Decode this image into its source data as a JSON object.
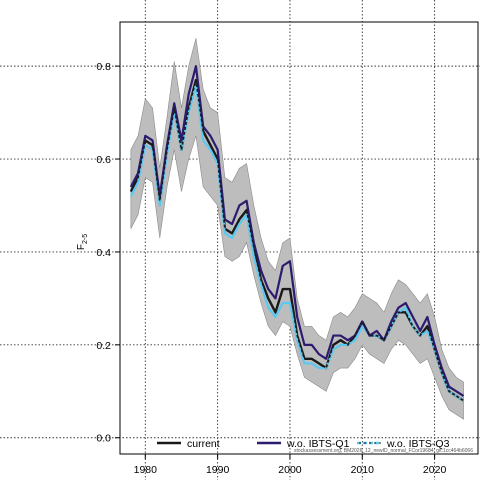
{
  "chart_data": {
    "type": "line",
    "title": "",
    "xlabel": "",
    "ylabel": "F",
    "ylabel_subscript": "2-5",
    "xlim": [
      1976.5,
      2026
    ],
    "ylim": [
      -0.035,
      0.895
    ],
    "x_ticks": [
      1980,
      1990,
      2000,
      2010,
      2020
    ],
    "y_ticks": [
      0.0,
      0.2,
      0.4,
      0.6,
      0.8
    ],
    "x_tick_labels": [
      "1980",
      "1990",
      "2000",
      "2010",
      "2020"
    ],
    "y_tick_labels": [
      "0.0",
      "0.2",
      "0.4",
      "0.6",
      "0.8"
    ],
    "grid": true,
    "legend_position": "bottom",
    "colors": {
      "band": "#bdbdbd",
      "current": "#1a1a1a",
      "wo_q1": "#2e1a6e",
      "wo_q3": "#5bc8ef",
      "grid": "#333333"
    },
    "x": [
      1978,
      1979,
      1980,
      1981,
      1982,
      1983,
      1984,
      1985,
      1986,
      1987,
      1988,
      1989,
      1990,
      1991,
      1992,
      1993,
      1994,
      1995,
      1996,
      1997,
      1998,
      1999,
      2000,
      2001,
      2002,
      2003,
      2004,
      2005,
      2006,
      2007,
      2008,
      2009,
      2010,
      2011,
      2012,
      2013,
      2014,
      2015,
      2016,
      2017,
      2018,
      2019,
      2020,
      2021,
      2022,
      2023,
      2024
    ],
    "band": {
      "lower": [
        0.45,
        0.48,
        0.56,
        0.55,
        0.43,
        0.54,
        0.62,
        0.53,
        0.6,
        0.65,
        0.54,
        0.52,
        0.5,
        0.39,
        0.38,
        0.39,
        0.42,
        0.35,
        0.29,
        0.24,
        0.22,
        0.25,
        0.24,
        0.18,
        0.13,
        0.12,
        0.11,
        0.1,
        0.14,
        0.15,
        0.15,
        0.17,
        0.2,
        0.18,
        0.17,
        0.16,
        0.19,
        0.21,
        0.2,
        0.18,
        0.16,
        0.17,
        0.13,
        0.09,
        0.06,
        0.05,
        0.04
      ],
      "upper": [
        0.62,
        0.65,
        0.73,
        0.71,
        0.58,
        0.69,
        0.81,
        0.71,
        0.8,
        0.86,
        0.75,
        0.71,
        0.7,
        0.56,
        0.55,
        0.58,
        0.59,
        0.5,
        0.43,
        0.38,
        0.36,
        0.42,
        0.43,
        0.3,
        0.24,
        0.24,
        0.22,
        0.21,
        0.26,
        0.27,
        0.26,
        0.28,
        0.31,
        0.3,
        0.29,
        0.27,
        0.31,
        0.34,
        0.33,
        0.31,
        0.29,
        0.31,
        0.26,
        0.19,
        0.15,
        0.13,
        0.12
      ]
    },
    "series": [
      {
        "name": "current",
        "values": [
          0.53,
          0.56,
          0.64,
          0.63,
          0.51,
          0.62,
          0.71,
          0.62,
          0.71,
          0.77,
          0.66,
          0.63,
          0.6,
          0.45,
          0.44,
          0.47,
          0.49,
          0.41,
          0.34,
          0.3,
          0.27,
          0.32,
          0.32,
          0.22,
          0.17,
          0.17,
          0.16,
          0.15,
          0.2,
          0.21,
          0.2,
          0.22,
          0.25,
          0.22,
          0.22,
          0.21,
          0.24,
          0.27,
          0.27,
          0.24,
          0.22,
          0.24,
          0.19,
          0.14,
          0.1,
          0.09,
          0.08
        ]
      },
      {
        "name": "w.o. IBTS-Q1",
        "values": [
          0.54,
          0.57,
          0.65,
          0.64,
          0.52,
          0.63,
          0.72,
          0.64,
          0.74,
          0.8,
          0.67,
          0.65,
          0.62,
          0.47,
          0.46,
          0.5,
          0.51,
          0.42,
          0.36,
          0.32,
          0.3,
          0.37,
          0.38,
          0.26,
          0.2,
          0.2,
          0.18,
          0.17,
          0.22,
          0.22,
          0.21,
          0.22,
          0.25,
          0.22,
          0.23,
          0.21,
          0.25,
          0.28,
          0.29,
          0.26,
          0.23,
          0.26,
          0.2,
          0.15,
          0.11,
          0.1,
          0.09
        ]
      },
      {
        "name": "w.o. IBTS-Q3",
        "values": [
          0.52,
          0.55,
          0.63,
          0.62,
          0.5,
          0.61,
          0.7,
          0.62,
          0.7,
          0.76,
          0.64,
          0.62,
          0.59,
          0.44,
          0.43,
          0.46,
          0.48,
          0.39,
          0.33,
          0.28,
          0.26,
          0.29,
          0.29,
          0.21,
          0.16,
          0.16,
          0.15,
          0.15,
          0.19,
          0.2,
          0.2,
          0.21,
          0.24,
          0.22,
          0.22,
          0.21,
          0.24,
          0.27,
          0.28,
          0.24,
          0.22,
          0.23,
          0.19,
          0.14,
          0.1,
          0.09,
          0.08
        ]
      }
    ],
    "legend": [
      {
        "label": "current"
      },
      {
        "label": "w.o. IBTS-Q1"
      },
      {
        "label": "w.o. IBTS-Q3"
      }
    ],
    "footnote": "stockassessment.org, BM2026_12_newID_normal_FCor19684, git:1cc464b6066"
  }
}
